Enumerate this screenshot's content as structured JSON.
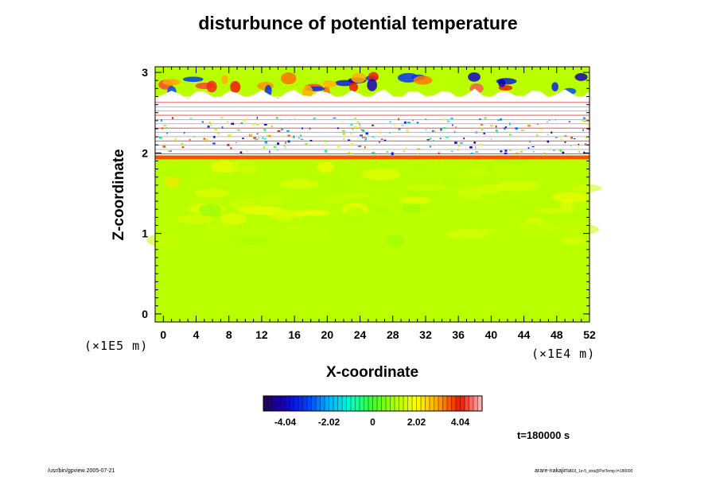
{
  "chart_data": {
    "type": "heatmap",
    "title": "disturbunce of potential temperature",
    "xlabel": "X-coordinate",
    "ylabel": "Z-coordinate",
    "x_unit": "(×1E4 m)",
    "y_unit": "(×1E5 m)",
    "xlim": [
      -1,
      52
    ],
    "ylim": [
      -0.1,
      3.07
    ],
    "xticks": [
      0,
      4,
      8,
      12,
      16,
      20,
      24,
      28,
      32,
      36,
      40,
      44,
      48,
      52
    ],
    "yticks": [
      0,
      1,
      2,
      3
    ],
    "colorbar": {
      "vmin": -5.05,
      "vmax": 5.05,
      "tick_values": [
        -4.04,
        -2.02,
        0,
        2.02,
        4.04
      ],
      "tick_labels": [
        "-4.04",
        "-2.02",
        "0",
        "2.02",
        "4.04"
      ],
      "levels": 50
    },
    "field": {
      "lower_layer": {
        "z_range": [
          -0.1,
          1.95
        ],
        "typical_value": 1.2,
        "note_values": [
          0.5,
          2.0
        ]
      },
      "interface_band": {
        "z_range": [
          1.92,
          1.97
        ],
        "typical_value": 3.6
      },
      "stable_layer": {
        "z_range": [
          1.97,
          2.7
        ],
        "typical_value": 0
      },
      "upper_layer": {
        "z_range": [
          2.7,
          3.07
        ],
        "typical_value": 1.2,
        "extremes": [
          -4.5,
          4.5
        ]
      }
    },
    "grid": false,
    "legend": "colorbar-bottom"
  },
  "annotations": {
    "time": "t=180000 s",
    "footer_left": "/usr/bin/gpview 2005-07-21",
    "footer_right_main": "arare-nakajima",
    "footer_right_small": "03_1e-5_stra@PotTemp,t=180000"
  }
}
